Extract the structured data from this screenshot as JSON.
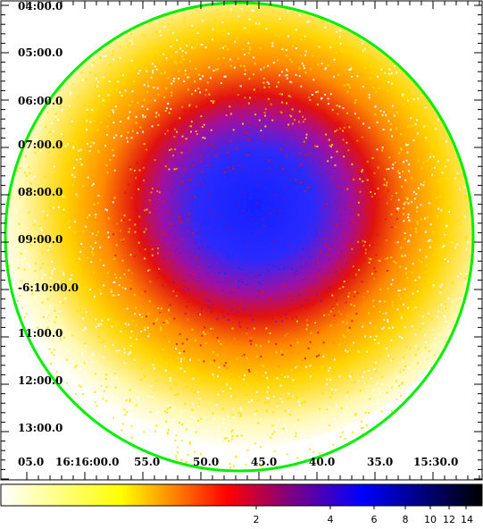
{
  "dec_axis": {
    "labels": [
      "04:00.0",
      "05:00.0",
      "06:00.0",
      "07:00.0",
      "08:00.0",
      "09:00.0",
      "-6:10:00.0",
      "11:00.0",
      "12:00.0",
      "13:00.0"
    ]
  },
  "ra_axis": {
    "labels": [
      "05.0",
      "16:16:00.0",
      "55.0",
      "50.0",
      "45.0",
      "40.0",
      "35.0",
      "15:30.0"
    ]
  },
  "colorbar": {
    "tick_labels": [
      "2",
      "4",
      "6",
      "8",
      "10",
      "12",
      "14"
    ],
    "stops": [
      "#ffffff",
      "#ffff00",
      "#ff8c00",
      "#ff0000",
      "#800080",
      "#0000ff",
      "#000000"
    ]
  },
  "colors": {
    "circle": "#00ee00",
    "halo_outer": "#ffe000",
    "halo_mid": "#ff9000",
    "halo_inner": "#e01010",
    "core": "#1a2bff"
  }
}
